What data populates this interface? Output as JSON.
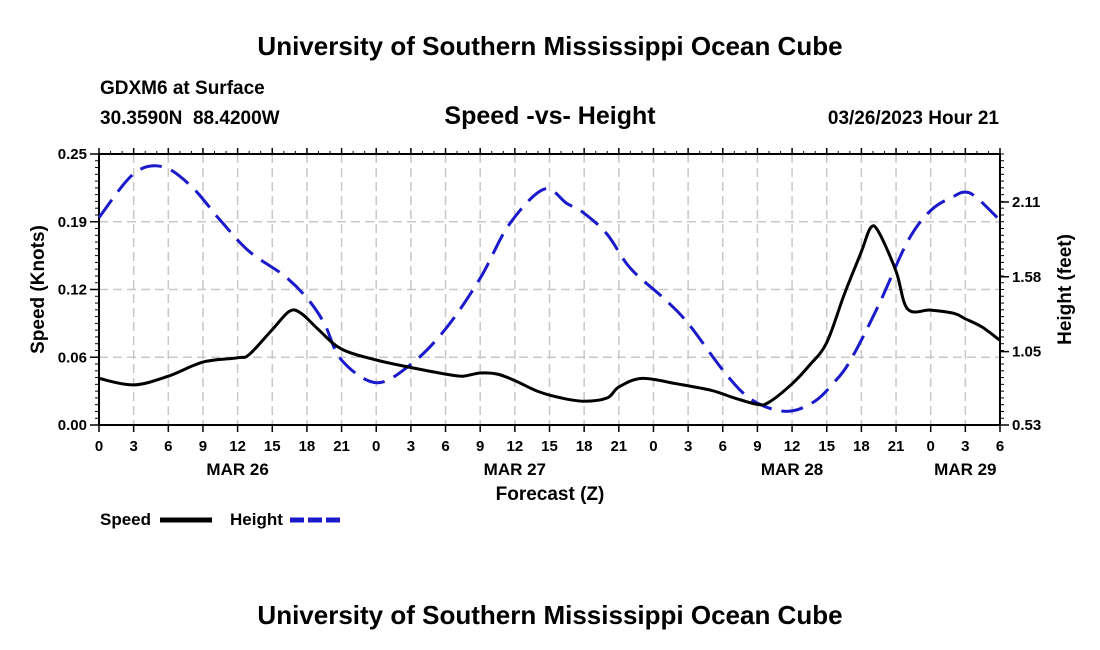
{
  "header": {
    "title": "University of Southern Mississippi Ocean Cube",
    "station": "GDXM6 at Surface",
    "coords": "30.3590N  88.4200W",
    "chart_title": "Speed -vs- Height",
    "datetime": "03/26/2023 Hour 21"
  },
  "footer": {
    "title": "University of Southern Mississippi Ocean Cube"
  },
  "chart_data": {
    "type": "line",
    "title": "Speed -vs- Height",
    "xlabel": "Forecast (Z)",
    "ylabel_left": "Speed (Knots)",
    "ylabel_right": "Height (feet)",
    "x_range_hours": [
      0,
      78
    ],
    "y_left_range": [
      0,
      0.25
    ],
    "y_right_range": [
      0.53,
      2.45
    ],
    "y_left_ticks": [
      "0.00",
      "0.06",
      "0.12",
      "0.19",
      "0.25"
    ],
    "y_left_tick_values": [
      0,
      0.0625,
      0.125,
      0.1875,
      0.25
    ],
    "y_right_ticks": [
      "0.53",
      "1.05",
      "1.58",
      "2.11"
    ],
    "y_right_tick_values": [
      0.53,
      1.05,
      1.58,
      2.11
    ],
    "x_tick_labels": [
      "0",
      "3",
      "6",
      "9",
      "12",
      "15",
      "18",
      "21",
      "0",
      "3",
      "6",
      "9",
      "12",
      "15",
      "18",
      "21",
      "0",
      "3",
      "6",
      "9",
      "12",
      "15",
      "18",
      "21",
      "0",
      "3",
      "6"
    ],
    "x_tick_hours": [
      0,
      3,
      6,
      9,
      12,
      15,
      18,
      21,
      24,
      27,
      30,
      33,
      36,
      39,
      42,
      45,
      48,
      51,
      54,
      57,
      60,
      63,
      66,
      69,
      72,
      75,
      78
    ],
    "day_labels": [
      {
        "label": "MAR 26",
        "hour": 12
      },
      {
        "label": "MAR 27",
        "hour": 36
      },
      {
        "label": "MAR 28",
        "hour": 60
      },
      {
        "label": "MAR 29",
        "hour": 75
      }
    ],
    "grid": true,
    "legend_position": "bottom-left",
    "series": [
      {
        "name": "Speed",
        "axis": "left",
        "color": "#000000",
        "style": "solid",
        "x": [
          0,
          3,
          6,
          9,
          12,
          13,
          15,
          16.5,
          17.5,
          19,
          21,
          24,
          27,
          30,
          31.5,
          33,
          34.5,
          36,
          38,
          40,
          42,
          44,
          45,
          47,
          50,
          53,
          55,
          57,
          58,
          60,
          61.5,
          63,
          64.5,
          66,
          66.8,
          67.5,
          69,
          70,
          72,
          74,
          75,
          76.5,
          78
        ],
        "y": [
          0.043,
          0.037,
          0.045,
          0.058,
          0.062,
          0.065,
          0.088,
          0.105,
          0.103,
          0.088,
          0.07,
          0.06,
          0.053,
          0.047,
          0.045,
          0.048,
          0.047,
          0.041,
          0.031,
          0.025,
          0.022,
          0.025,
          0.035,
          0.043,
          0.038,
          0.032,
          0.025,
          0.019,
          0.021,
          0.038,
          0.055,
          0.076,
          0.12,
          0.16,
          0.182,
          0.178,
          0.142,
          0.107,
          0.106,
          0.103,
          0.098,
          0.09,
          0.078
        ]
      },
      {
        "name": "Height",
        "axis": "right",
        "color": "#1a1acc",
        "style": "dashed",
        "x": [
          0,
          3,
          5.5,
          8,
          10.5,
          13,
          16,
          18,
          19.5,
          21,
          24,
          27,
          30,
          33,
          35.5,
          38.5,
          40.5,
          42,
          44,
          46,
          49,
          51,
          54,
          56,
          58,
          60,
          62,
          63.5,
          65,
          67.5,
          70,
          72,
          74,
          75,
          76,
          78
        ],
        "y": [
          2.0,
          2.31,
          2.36,
          2.22,
          1.98,
          1.76,
          1.59,
          1.43,
          1.25,
          0.99,
          0.83,
          0.96,
          1.21,
          1.57,
          1.95,
          2.2,
          2.1,
          2.03,
          1.88,
          1.64,
          1.42,
          1.25,
          0.92,
          0.74,
          0.65,
          0.63,
          0.7,
          0.82,
          0.98,
          1.38,
          1.83,
          2.05,
          2.15,
          2.18,
          2.14,
          1.98
        ]
      }
    ]
  }
}
